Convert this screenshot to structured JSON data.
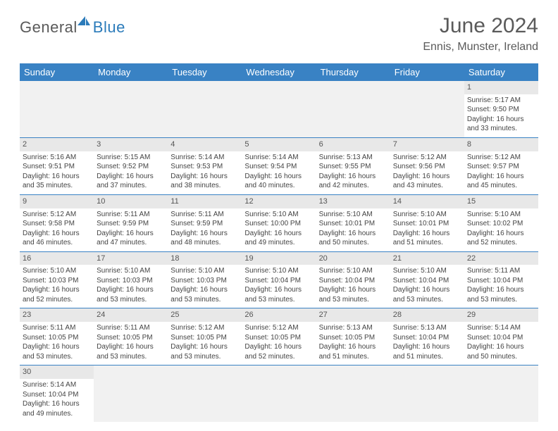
{
  "logo": {
    "part1": "General",
    "part2": "Blue"
  },
  "header": {
    "title": "June 2024",
    "location": "Ennis, Munster, Ireland"
  },
  "columns": [
    "Sunday",
    "Monday",
    "Tuesday",
    "Wednesday",
    "Thursday",
    "Friday",
    "Saturday"
  ],
  "colors": {
    "header_bg": "#3982c4",
    "header_text": "#ffffff",
    "daynum_bg": "#e8e8e8",
    "border": "#3982c4",
    "logo_blue": "#2b7bba",
    "text": "#444444"
  },
  "weeks": [
    [
      null,
      null,
      null,
      null,
      null,
      null,
      {
        "d": "1",
        "sr": "Sunrise: 5:17 AM",
        "ss": "Sunset: 9:50 PM",
        "dl1": "Daylight: 16 hours",
        "dl2": "and 33 minutes."
      }
    ],
    [
      {
        "d": "2",
        "sr": "Sunrise: 5:16 AM",
        "ss": "Sunset: 9:51 PM",
        "dl1": "Daylight: 16 hours",
        "dl2": "and 35 minutes."
      },
      {
        "d": "3",
        "sr": "Sunrise: 5:15 AM",
        "ss": "Sunset: 9:52 PM",
        "dl1": "Daylight: 16 hours",
        "dl2": "and 37 minutes."
      },
      {
        "d": "4",
        "sr": "Sunrise: 5:14 AM",
        "ss": "Sunset: 9:53 PM",
        "dl1": "Daylight: 16 hours",
        "dl2": "and 38 minutes."
      },
      {
        "d": "5",
        "sr": "Sunrise: 5:14 AM",
        "ss": "Sunset: 9:54 PM",
        "dl1": "Daylight: 16 hours",
        "dl2": "and 40 minutes."
      },
      {
        "d": "6",
        "sr": "Sunrise: 5:13 AM",
        "ss": "Sunset: 9:55 PM",
        "dl1": "Daylight: 16 hours",
        "dl2": "and 42 minutes."
      },
      {
        "d": "7",
        "sr": "Sunrise: 5:12 AM",
        "ss": "Sunset: 9:56 PM",
        "dl1": "Daylight: 16 hours",
        "dl2": "and 43 minutes."
      },
      {
        "d": "8",
        "sr": "Sunrise: 5:12 AM",
        "ss": "Sunset: 9:57 PM",
        "dl1": "Daylight: 16 hours",
        "dl2": "and 45 minutes."
      }
    ],
    [
      {
        "d": "9",
        "sr": "Sunrise: 5:12 AM",
        "ss": "Sunset: 9:58 PM",
        "dl1": "Daylight: 16 hours",
        "dl2": "and 46 minutes."
      },
      {
        "d": "10",
        "sr": "Sunrise: 5:11 AM",
        "ss": "Sunset: 9:59 PM",
        "dl1": "Daylight: 16 hours",
        "dl2": "and 47 minutes."
      },
      {
        "d": "11",
        "sr": "Sunrise: 5:11 AM",
        "ss": "Sunset: 9:59 PM",
        "dl1": "Daylight: 16 hours",
        "dl2": "and 48 minutes."
      },
      {
        "d": "12",
        "sr": "Sunrise: 5:10 AM",
        "ss": "Sunset: 10:00 PM",
        "dl1": "Daylight: 16 hours",
        "dl2": "and 49 minutes."
      },
      {
        "d": "13",
        "sr": "Sunrise: 5:10 AM",
        "ss": "Sunset: 10:01 PM",
        "dl1": "Daylight: 16 hours",
        "dl2": "and 50 minutes."
      },
      {
        "d": "14",
        "sr": "Sunrise: 5:10 AM",
        "ss": "Sunset: 10:01 PM",
        "dl1": "Daylight: 16 hours",
        "dl2": "and 51 minutes."
      },
      {
        "d": "15",
        "sr": "Sunrise: 5:10 AM",
        "ss": "Sunset: 10:02 PM",
        "dl1": "Daylight: 16 hours",
        "dl2": "and 52 minutes."
      }
    ],
    [
      {
        "d": "16",
        "sr": "Sunrise: 5:10 AM",
        "ss": "Sunset: 10:03 PM",
        "dl1": "Daylight: 16 hours",
        "dl2": "and 52 minutes."
      },
      {
        "d": "17",
        "sr": "Sunrise: 5:10 AM",
        "ss": "Sunset: 10:03 PM",
        "dl1": "Daylight: 16 hours",
        "dl2": "and 53 minutes."
      },
      {
        "d": "18",
        "sr": "Sunrise: 5:10 AM",
        "ss": "Sunset: 10:03 PM",
        "dl1": "Daylight: 16 hours",
        "dl2": "and 53 minutes."
      },
      {
        "d": "19",
        "sr": "Sunrise: 5:10 AM",
        "ss": "Sunset: 10:04 PM",
        "dl1": "Daylight: 16 hours",
        "dl2": "and 53 minutes."
      },
      {
        "d": "20",
        "sr": "Sunrise: 5:10 AM",
        "ss": "Sunset: 10:04 PM",
        "dl1": "Daylight: 16 hours",
        "dl2": "and 53 minutes."
      },
      {
        "d": "21",
        "sr": "Sunrise: 5:10 AM",
        "ss": "Sunset: 10:04 PM",
        "dl1": "Daylight: 16 hours",
        "dl2": "and 53 minutes."
      },
      {
        "d": "22",
        "sr": "Sunrise: 5:11 AM",
        "ss": "Sunset: 10:04 PM",
        "dl1": "Daylight: 16 hours",
        "dl2": "and 53 minutes."
      }
    ],
    [
      {
        "d": "23",
        "sr": "Sunrise: 5:11 AM",
        "ss": "Sunset: 10:05 PM",
        "dl1": "Daylight: 16 hours",
        "dl2": "and 53 minutes."
      },
      {
        "d": "24",
        "sr": "Sunrise: 5:11 AM",
        "ss": "Sunset: 10:05 PM",
        "dl1": "Daylight: 16 hours",
        "dl2": "and 53 minutes."
      },
      {
        "d": "25",
        "sr": "Sunrise: 5:12 AM",
        "ss": "Sunset: 10:05 PM",
        "dl1": "Daylight: 16 hours",
        "dl2": "and 53 minutes."
      },
      {
        "d": "26",
        "sr": "Sunrise: 5:12 AM",
        "ss": "Sunset: 10:05 PM",
        "dl1": "Daylight: 16 hours",
        "dl2": "and 52 minutes."
      },
      {
        "d": "27",
        "sr": "Sunrise: 5:13 AM",
        "ss": "Sunset: 10:05 PM",
        "dl1": "Daylight: 16 hours",
        "dl2": "and 51 minutes."
      },
      {
        "d": "28",
        "sr": "Sunrise: 5:13 AM",
        "ss": "Sunset: 10:04 PM",
        "dl1": "Daylight: 16 hours",
        "dl2": "and 51 minutes."
      },
      {
        "d": "29",
        "sr": "Sunrise: 5:14 AM",
        "ss": "Sunset: 10:04 PM",
        "dl1": "Daylight: 16 hours",
        "dl2": "and 50 minutes."
      }
    ],
    [
      {
        "d": "30",
        "sr": "Sunrise: 5:14 AM",
        "ss": "Sunset: 10:04 PM",
        "dl1": "Daylight: 16 hours",
        "dl2": "and 49 minutes."
      },
      null,
      null,
      null,
      null,
      null,
      null
    ]
  ]
}
